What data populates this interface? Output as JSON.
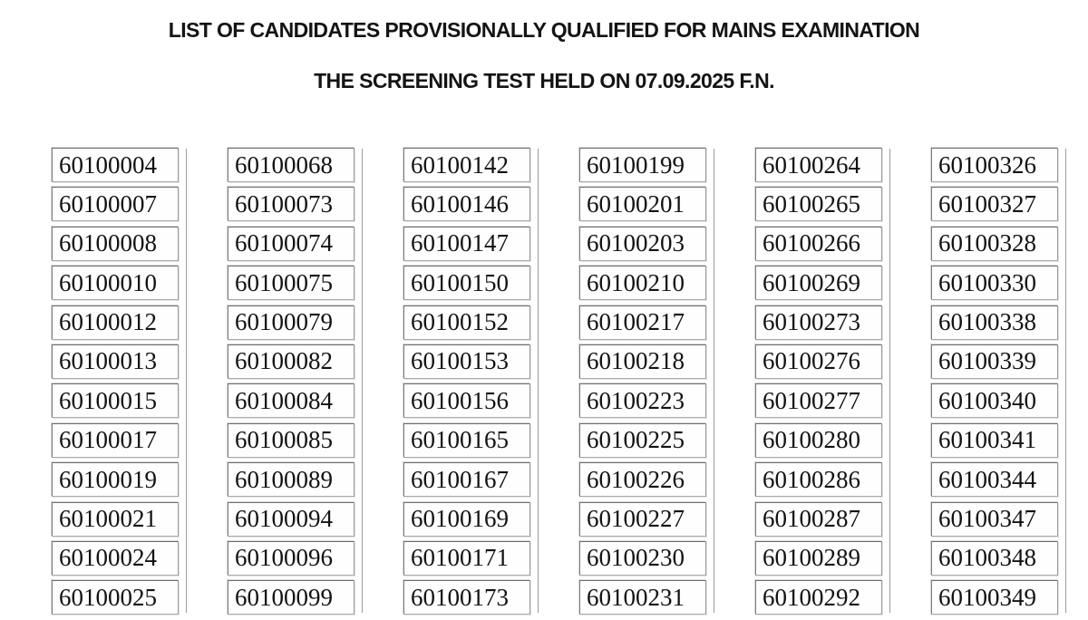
{
  "document": {
    "title": "LIST OF CANDIDATES PROVISIONALLY QUALIFIED FOR MAINS EXAMINATION",
    "subtitle": "THE SCREENING TEST HELD ON 07.09.2025 F.N."
  },
  "roll_numbers": {
    "columns": [
      [
        "60100004",
        "60100007",
        "60100008",
        "60100010",
        "60100012",
        "60100013",
        "60100015",
        "60100017",
        "60100019",
        "60100021",
        "60100024",
        "60100025"
      ],
      [
        "60100068",
        "60100073",
        "60100074",
        "60100075",
        "60100079",
        "60100082",
        "60100084",
        "60100085",
        "60100089",
        "60100094",
        "60100096",
        "60100099"
      ],
      [
        "60100142",
        "60100146",
        "60100147",
        "60100150",
        "60100152",
        "60100153",
        "60100156",
        "60100165",
        "60100167",
        "60100169",
        "60100171",
        "60100173"
      ],
      [
        "60100199",
        "60100201",
        "60100203",
        "60100210",
        "60100217",
        "60100218",
        "60100223",
        "60100225",
        "60100226",
        "60100227",
        "60100230",
        "60100231"
      ],
      [
        "60100264",
        "60100265",
        "60100266",
        "60100269",
        "60100273",
        "60100276",
        "60100277",
        "60100280",
        "60100286",
        "60100287",
        "60100289",
        "60100292"
      ],
      [
        "60100326",
        "60100327",
        "60100328",
        "60100330",
        "60100338",
        "60100339",
        "60100340",
        "60100341",
        "60100344",
        "60100347",
        "60100348",
        "60100349"
      ]
    ]
  },
  "colors": {
    "background": "#ffffff",
    "text": "#141414",
    "cell_border_dark": "#6f6f6f",
    "cell_border_light": "#d6d6d6",
    "column_separator": "#9c9c9c"
  }
}
